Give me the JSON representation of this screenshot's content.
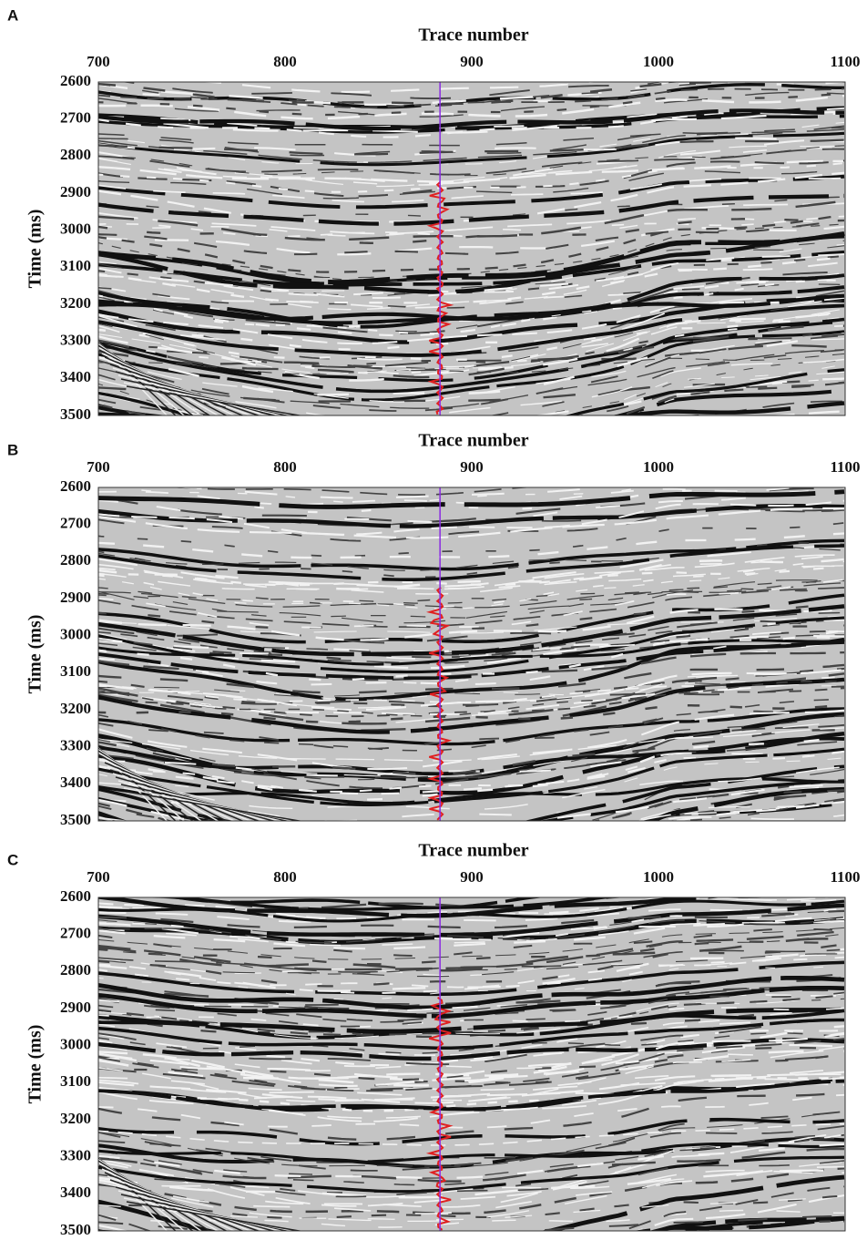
{
  "chart_data": [
    {
      "type": "seismic",
      "panel_label": "A",
      "xlabel": "Trace number",
      "ylabel": "Time (ms)",
      "xlim": [
        700,
        1100
      ],
      "xticks": [
        700,
        800,
        900,
        1000,
        1100
      ],
      "ylim": [
        2600,
        3500
      ],
      "yticks": [
        2600,
        2700,
        2800,
        2900,
        3000,
        3100,
        3200,
        3300,
        3400,
        3500
      ],
      "y_inverted": true,
      "well_trace": 883,
      "well_color": "#8a2be2",
      "log_color": "#e02020"
    },
    {
      "type": "seismic",
      "panel_label": "B",
      "xlabel": "Trace number",
      "ylabel": "Time (ms)",
      "xlim": [
        700,
        1100
      ],
      "xticks": [
        700,
        800,
        900,
        1000,
        1100
      ],
      "ylim": [
        2600,
        3500
      ],
      "yticks": [
        2600,
        2700,
        2800,
        2900,
        3000,
        3100,
        3200,
        3300,
        3400,
        3500
      ],
      "y_inverted": true,
      "well_trace": 883,
      "well_color": "#8a2be2",
      "log_color": "#e02020"
    },
    {
      "type": "seismic",
      "panel_label": "C",
      "xlabel": "Trace number",
      "ylabel": "Time (ms)",
      "xlim": [
        700,
        1100
      ],
      "xticks": [
        700,
        800,
        900,
        1000,
        1100
      ],
      "ylim": [
        2600,
        3500
      ],
      "yticks": [
        2600,
        2700,
        2800,
        2900,
        3000,
        3100,
        3200,
        3300,
        3400,
        3500
      ],
      "y_inverted": true,
      "well_trace": 883,
      "well_color": "#8a2be2",
      "log_color": "#e02020"
    }
  ]
}
